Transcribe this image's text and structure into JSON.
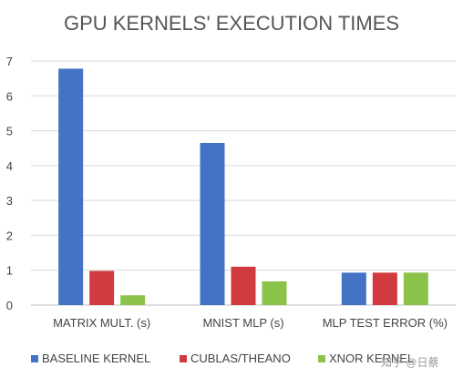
{
  "chart_data": {
    "type": "bar",
    "title": "GPU KERNELS' EXECUTION TIMES",
    "categories": [
      "MATRIX MULT. (s)",
      "MNIST MLP (s)",
      "MLP TEST ERROR (%)"
    ],
    "series": [
      {
        "name": "BASELINE KERNEL",
        "color": "#4472C4",
        "values": [
          6.78,
          4.65,
          0.93
        ]
      },
      {
        "name": "CUBLAS/THEANO",
        "color": "#D13B3F",
        "values": [
          0.98,
          1.1,
          0.93
        ]
      },
      {
        "name": "XNOR KERNEL",
        "color": "#8BC24A",
        "values": [
          0.28,
          0.68,
          0.93
        ]
      }
    ],
    "ylim": [
      0,
      7
    ],
    "yticks": [
      0,
      1,
      2,
      3,
      4,
      5,
      6,
      7
    ],
    "grid": true,
    "legend": "bottom"
  },
  "watermark": "知乎 @日蔡"
}
